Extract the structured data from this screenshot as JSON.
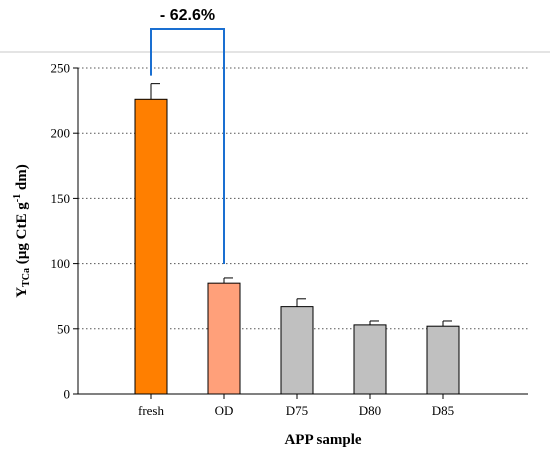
{
  "chart_data": {
    "type": "bar",
    "categories": [
      "fresh",
      "OD",
      "D75",
      "D80",
      "D85"
    ],
    "values": [
      226,
      85,
      67,
      53,
      52
    ],
    "errors": [
      12,
      4,
      6,
      3,
      4
    ],
    "colors": [
      "#ff7f00",
      "#ffa07a",
      "#c0c0c0",
      "#c0c0c0",
      "#c0c0c0"
    ],
    "xlabel": "APP sample",
    "ylabel": {
      "main": "Y",
      "sub": "TCa",
      "unit_pre": " (µg CtE g",
      "unit_sup": "-1",
      "unit_post": " dm)"
    },
    "ylim": [
      0,
      250
    ],
    "yticks": [
      0,
      50,
      100,
      150,
      200,
      250
    ],
    "grid": "horizontal-dotted",
    "annotation": {
      "text": "- 62.6%",
      "from_category": "fresh",
      "to_category": "OD",
      "color": "#1a6fd1"
    }
  }
}
